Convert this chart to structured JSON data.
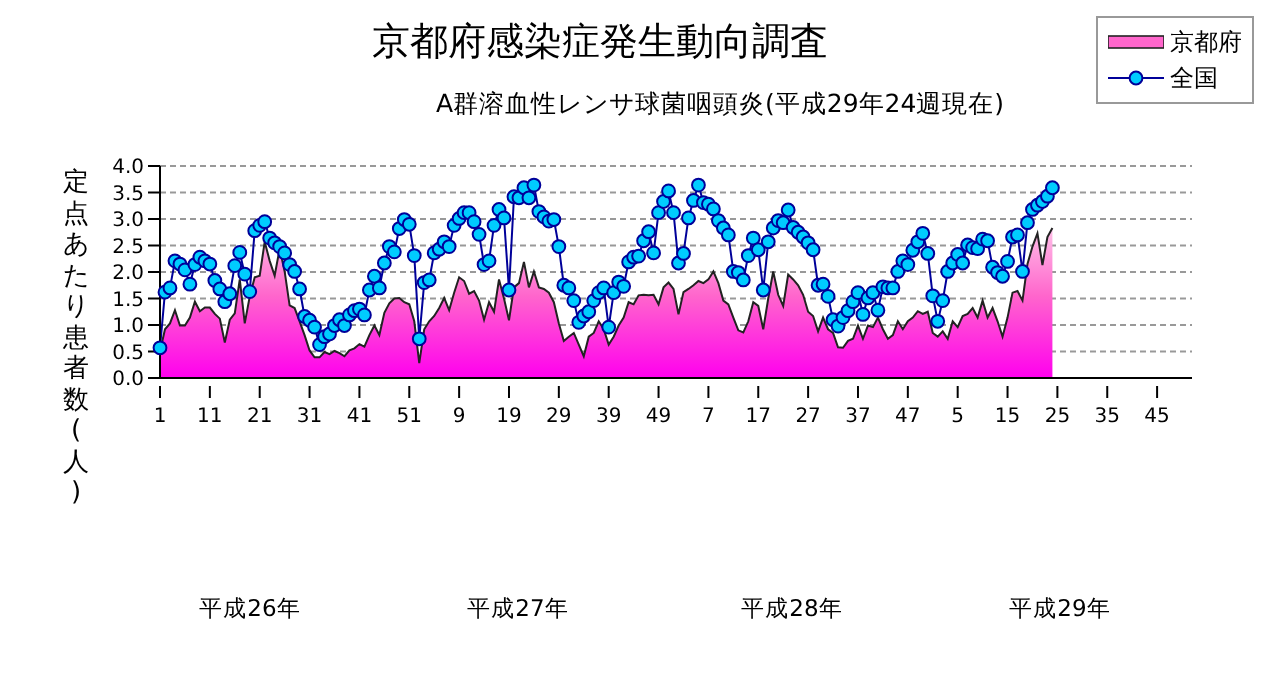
{
  "chart_data": {
    "type": "line",
    "title": "京都府感染症発生動向調査",
    "subtitle": "A群溶血性レンサ球菌咽頭炎(平成29年24週現在)",
    "ylabel": "定点あたり患者数(人)",
    "annotations": [
      "平成26年",
      "平成27年",
      "平成28年",
      "平成29年"
    ],
    "categories": [
      "1",
      null,
      null,
      null,
      null,
      null,
      null,
      null,
      null,
      null,
      "11",
      null,
      null,
      null,
      null,
      null,
      null,
      null,
      null,
      null,
      "21",
      null,
      null,
      null,
      null,
      null,
      null,
      null,
      null,
      null,
      "31",
      null,
      null,
      null,
      null,
      null,
      null,
      null,
      null,
      null,
      "41",
      null,
      null,
      null,
      null,
      null,
      null,
      null,
      null,
      null,
      "51",
      null,
      null,
      null,
      null,
      null,
      null,
      null,
      null,
      null,
      "9",
      null,
      null,
      null,
      null,
      null,
      null,
      null,
      null,
      null,
      "19",
      null,
      null,
      null,
      null,
      null,
      null,
      null,
      null,
      null,
      "29",
      null,
      null,
      null,
      null,
      null,
      null,
      null,
      null,
      null,
      "39",
      null,
      null,
      null,
      null,
      null,
      null,
      null,
      null,
      null,
      "49",
      null,
      null,
      null,
      null,
      null,
      null,
      null,
      null,
      null,
      "7",
      null,
      null,
      null,
      null,
      null,
      null,
      null,
      null,
      null,
      "17",
      null,
      null,
      null,
      null,
      null,
      null,
      null,
      null,
      null,
      "27",
      null,
      null,
      null,
      null,
      null,
      null,
      null,
      null,
      null,
      "37",
      null,
      null,
      null,
      null,
      null,
      null,
      null,
      null,
      null,
      "47",
      null,
      null,
      null,
      null,
      null,
      null,
      null,
      null,
      null,
      "5",
      null,
      null,
      null,
      null,
      null,
      null,
      null,
      null,
      null,
      "15",
      null,
      null,
      null,
      null,
      null,
      null,
      null,
      null,
      null,
      "25",
      null,
      null,
      null,
      null,
      null,
      null,
      null,
      null,
      null,
      "35",
      null,
      null,
      null,
      null,
      null,
      null,
      null,
      null,
      null,
      "45",
      null,
      null,
      null,
      null,
      null,
      null,
      null
    ],
    "series": [
      {
        "name": "京都府",
        "type": "area",
        "color": "#ff66cc",
        "values": [
          0.5,
          0.92,
          1.03,
          1.28,
          0.99,
          0.99,
          1.14,
          1.44,
          1.26,
          1.33,
          1.33,
          1.21,
          1.12,
          0.67,
          1.1,
          1.22,
          1.86,
          1.03,
          1.54,
          1.9,
          1.93,
          2.57,
          2.21,
          1.93,
          2.44,
          2.01,
          1.37,
          1.32,
          1.07,
          0.81,
          0.52,
          0.39,
          0.39,
          0.49,
          0.45,
          0.51,
          0.47,
          0.41,
          0.52,
          0.56,
          0.64,
          0.59,
          0.81,
          0.99,
          0.81,
          1.23,
          1.41,
          1.5,
          1.51,
          1.43,
          1.39,
          1.07,
          0.28,
          0.92,
          1.07,
          1.17,
          1.32,
          1.51,
          1.28,
          1.61,
          1.9,
          1.83,
          1.59,
          1.64,
          1.46,
          1.1,
          1.43,
          1.25,
          1.86,
          1.5,
          1.09,
          1.71,
          1.79,
          2.19,
          1.71,
          2.01,
          1.71,
          1.68,
          1.61,
          1.43,
          1.03,
          0.7,
          0.78,
          0.85,
          0.63,
          0.41,
          0.78,
          0.85,
          1.07,
          0.92,
          0.63,
          0.78,
          0.99,
          1.14,
          1.43,
          1.39,
          1.56,
          1.57,
          1.56,
          1.57,
          1.39,
          1.71,
          1.8,
          1.68,
          1.2,
          1.62,
          1.68,
          1.75,
          1.83,
          1.79,
          1.86,
          2.01,
          1.79,
          1.46,
          1.39,
          1.14,
          0.9,
          0.86,
          1.07,
          1.43,
          1.36,
          0.92,
          1.5,
          2.01,
          1.57,
          1.36,
          1.95,
          1.86,
          1.75,
          1.57,
          1.25,
          1.17,
          0.88,
          1.14,
          0.92,
          0.85,
          0.58,
          0.57,
          0.7,
          0.74,
          0.99,
          0.74,
          0.99,
          0.96,
          1.14,
          0.92,
          0.74,
          0.81,
          1.07,
          0.92,
          1.07,
          1.14,
          1.26,
          1.21,
          1.25,
          0.85,
          0.78,
          0.88,
          0.74,
          1.07,
          0.96,
          1.17,
          1.21,
          1.32,
          1.14,
          1.46,
          1.14,
          1.32,
          1.07,
          0.78,
          1.14,
          1.61,
          1.64,
          1.46,
          2.15,
          2.48,
          2.73,
          2.13,
          2.66,
          2.83,
          null,
          null,
          null,
          null,
          null,
          null,
          null,
          null,
          null,
          null,
          null,
          null,
          null,
          null,
          null,
          null,
          null,
          null,
          null,
          null,
          null,
          null,
          null,
          null,
          null,
          null,
          null,
          null
        ]
      },
      {
        "name": "全国",
        "color": "#000099",
        "marker": "circle",
        "values": [
          0.57,
          1.62,
          1.7,
          2.21,
          2.15,
          2.04,
          1.77,
          2.14,
          2.28,
          2.21,
          2.15,
          1.84,
          1.68,
          1.44,
          1.59,
          2.12,
          2.37,
          1.96,
          1.63,
          2.78,
          2.88,
          2.95,
          2.64,
          2.55,
          2.48,
          2.36,
          2.14,
          2.01,
          1.68,
          1.16,
          1.09,
          0.96,
          0.63,
          0.78,
          0.83,
          0.99,
          1.1,
          0.99,
          1.19,
          1.27,
          1.3,
          1.19,
          1.66,
          1.92,
          1.7,
          2.17,
          2.48,
          2.38,
          2.82,
          2.99,
          2.9,
          2.31,
          0.74,
          1.8,
          1.85,
          2.36,
          2.43,
          2.57,
          2.48,
          2.88,
          3.01,
          3.12,
          3.12,
          2.95,
          2.71,
          2.14,
          2.21,
          2.88,
          3.18,
          3.02,
          1.66,
          3.42,
          3.4,
          3.59,
          3.4,
          3.64,
          3.14,
          3.04,
          2.96,
          2.99,
          2.48,
          1.75,
          1.7,
          1.46,
          1.05,
          1.17,
          1.25,
          1.46,
          1.61,
          1.7,
          0.96,
          1.61,
          1.81,
          1.73,
          2.19,
          2.28,
          2.3,
          2.59,
          2.76,
          2.36,
          3.12,
          3.33,
          3.53,
          3.12,
          2.17,
          2.35,
          3.02,
          3.35,
          3.64,
          3.31,
          3.28,
          3.19,
          2.97,
          2.83,
          2.7,
          2.01,
          1.99,
          1.85,
          2.31,
          2.64,
          2.42,
          1.66,
          2.57,
          2.83,
          2.97,
          2.93,
          3.17,
          2.84,
          2.75,
          2.66,
          2.55,
          2.42,
          1.75,
          1.77,
          1.54,
          1.1,
          0.98,
          1.14,
          1.27,
          1.44,
          1.61,
          1.2,
          1.51,
          1.61,
          1.28,
          1.72,
          1.7,
          1.7,
          2.01,
          2.21,
          2.14,
          2.41,
          2.57,
          2.73,
          2.35,
          1.55,
          1.07,
          1.46,
          2.01,
          2.17,
          2.33,
          2.17,
          2.51,
          2.46,
          2.44,
          2.62,
          2.59,
          2.09,
          1.99,
          1.92,
          2.2,
          2.66,
          2.7,
          2.01,
          2.93,
          3.18,
          3.26,
          3.33,
          3.43,
          3.59,
          null,
          null,
          null,
          null,
          null,
          null,
          null,
          null,
          null,
          null,
          null,
          null,
          null,
          null,
          null,
          null,
          null,
          null,
          null,
          null,
          null,
          null,
          null,
          null,
          null,
          null,
          null,
          null
        ]
      }
    ],
    "ylim": [
      0,
      4
    ],
    "yticks": [
      {
        "value": 0,
        "label": "0.0"
      },
      {
        "value": 0.5,
        "label": "0.5"
      },
      {
        "value": 1,
        "label": "1.0"
      },
      {
        "value": 1.5,
        "label": "1.5"
      },
      {
        "value": 2,
        "label": "2.0"
      },
      {
        "value": 2.5,
        "label": "2.5"
      },
      {
        "value": 3,
        "label": "3.0"
      },
      {
        "value": 3.5,
        "label": "3.5"
      },
      {
        "value": 4,
        "label": "4.0"
      }
    ],
    "grid": "y",
    "legend": "top right"
  }
}
